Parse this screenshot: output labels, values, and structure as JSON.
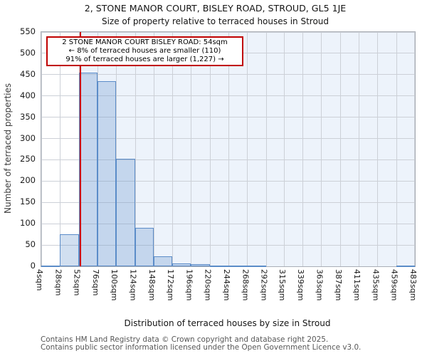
{
  "title": "2, STONE MANOR COURT, BISLEY ROAD, STROUD, GL5 1JE",
  "subtitle": "Size of property relative to terraced houses in Stroud",
  "annotation": {
    "line1": "2 STONE MANOR COURT BISLEY ROAD: 54sqm",
    "line2": "← 8% of terraced houses are smaller (110)",
    "line3": "91% of terraced houses are larger (1,227) →"
  },
  "chart_data": {
    "type": "bar",
    "title": "2, STONE MANOR COURT, BISLEY ROAD, STROUD, GL5 1JE",
    "subtitle": "Size of property relative to terraced houses in Stroud",
    "xlabel": "Distribution of terraced houses by size in Stroud",
    "ylabel": "Number of terraced properties",
    "bin_edges_sqm": [
      4,
      28,
      52,
      76,
      100,
      124,
      148,
      172,
      196,
      220,
      244,
      268,
      292,
      315,
      339,
      363,
      387,
      411,
      435,
      459,
      483
    ],
    "xtick_labels": [
      "4sqm",
      "28sqm",
      "52sqm",
      "76sqm",
      "100sqm",
      "124sqm",
      "148sqm",
      "172sqm",
      "196sqm",
      "220sqm",
      "244sqm",
      "268sqm",
      "292sqm",
      "315sqm",
      "339sqm",
      "363sqm",
      "387sqm",
      "411sqm",
      "435sqm",
      "459sqm",
      "483sqm"
    ],
    "values": [
      2,
      76,
      454,
      434,
      253,
      90,
      24,
      7,
      5,
      1,
      2,
      1,
      0,
      0,
      0,
      0,
      0,
      0,
      0,
      1
    ],
    "ylim": [
      0,
      550
    ],
    "yticks": [
      0,
      50,
      100,
      150,
      200,
      250,
      300,
      350,
      400,
      450,
      500,
      550
    ],
    "grid": true,
    "marker": {
      "value_sqm": 54,
      "color": "#cc0000"
    },
    "shaded_region": {
      "from_sqm": 54,
      "to_sqm": 483,
      "color": "#edf3fb"
    },
    "colors": {
      "bar_fill": "#d3dff2",
      "bar_edge": "#5b8cc8",
      "gridline": "#ccd0d7",
      "marker_line": "#cc0000",
      "annotation_border": "#c00000"
    }
  },
  "footer": {
    "line1": "Contains HM Land Registry data © Crown copyright and database right 2025.",
    "line2": "Contains public sector information licensed under the Open Government Licence v3.0."
  }
}
